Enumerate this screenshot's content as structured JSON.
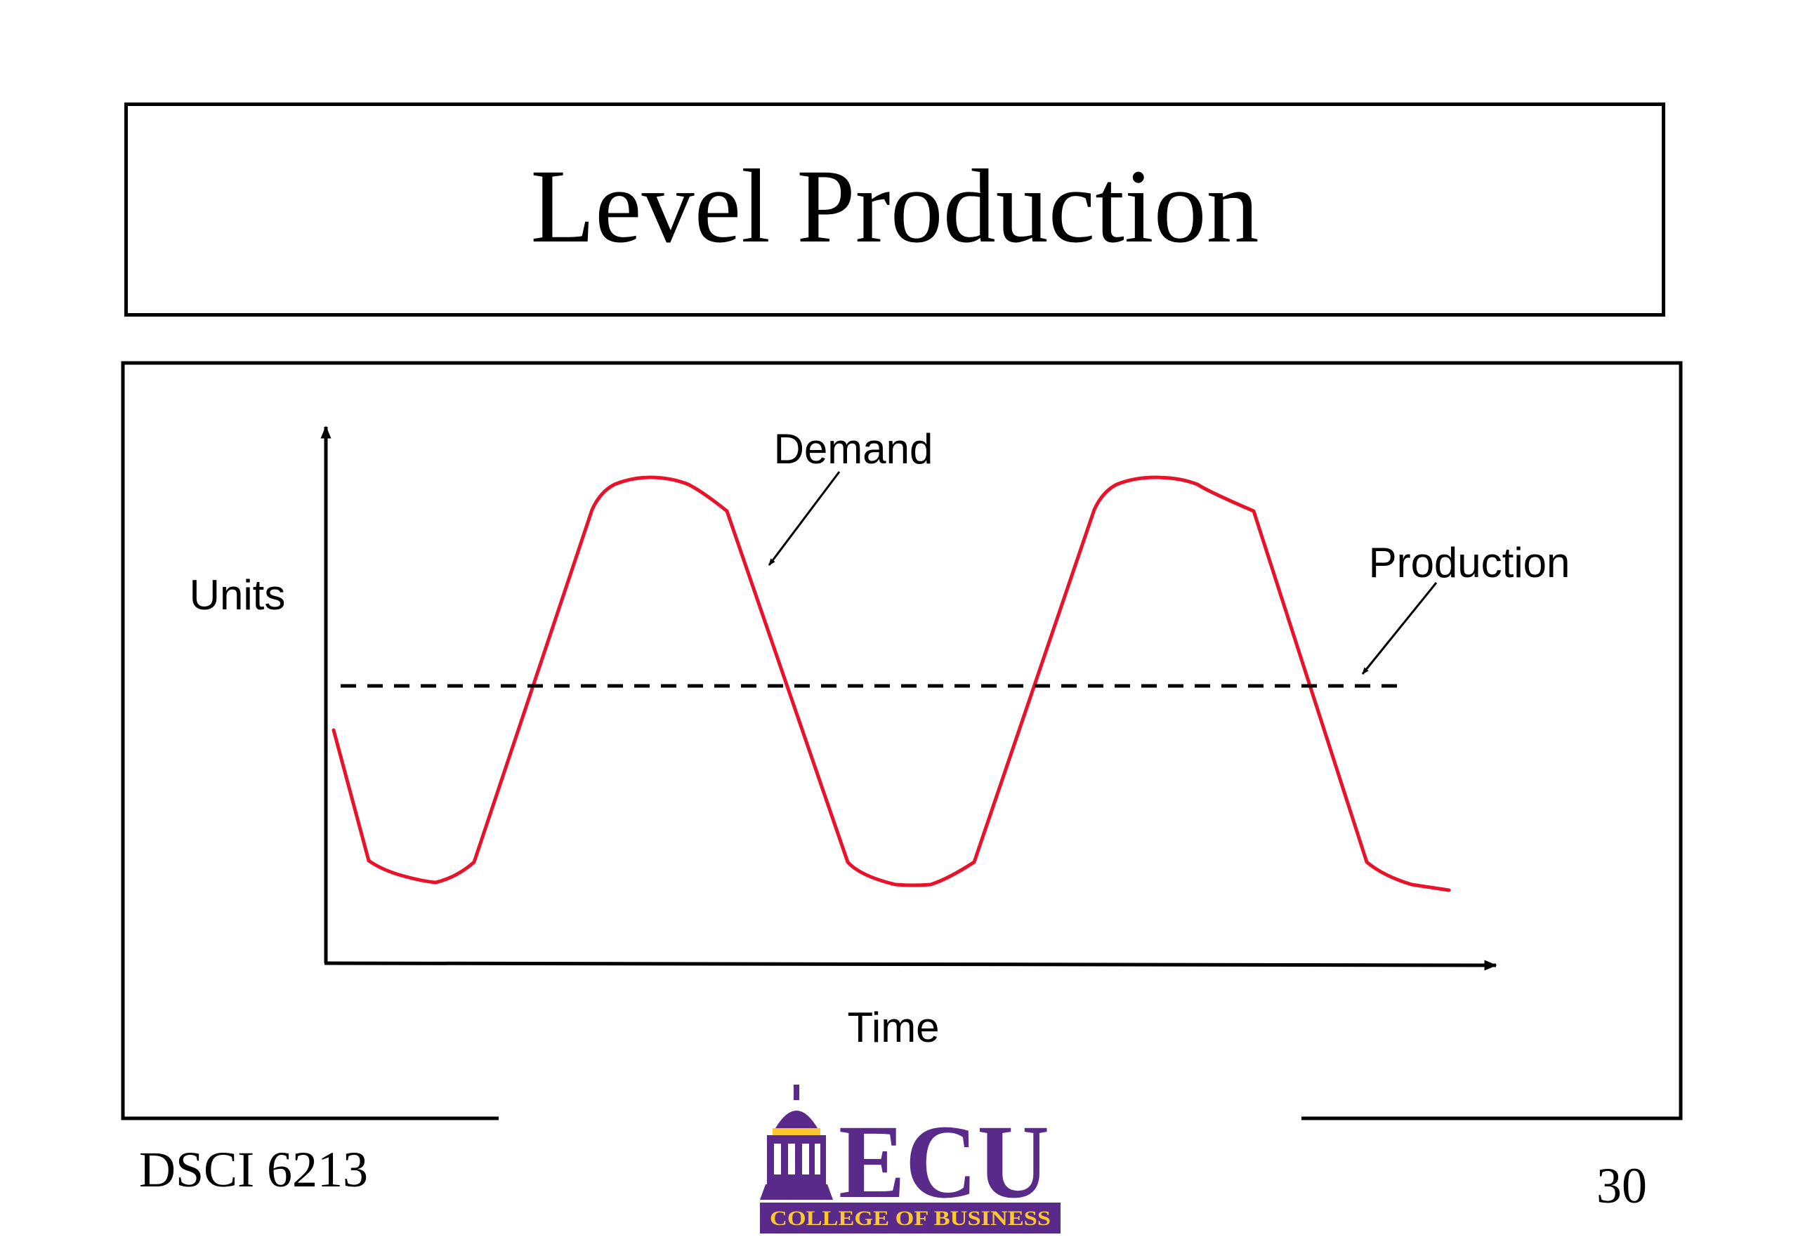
{
  "slide": {
    "title": "Level Production",
    "footer_left": "DSCI 6213",
    "page_number": "30"
  },
  "diagram": {
    "y_axis_label": "Units",
    "x_axis_label": "Time",
    "curves": [
      {
        "label": "Demand",
        "style": "solid",
        "color": "#e8132a",
        "shape": "wave, two peaks"
      },
      {
        "label": "Production",
        "style": "dashed",
        "color": "#000000",
        "shape": "constant level"
      }
    ]
  },
  "logo": {
    "wordmark": "ECU",
    "subtitle": "COLLEGE OF BUSINESS",
    "purple": "#592a8a",
    "gold": "#fdc82f"
  }
}
